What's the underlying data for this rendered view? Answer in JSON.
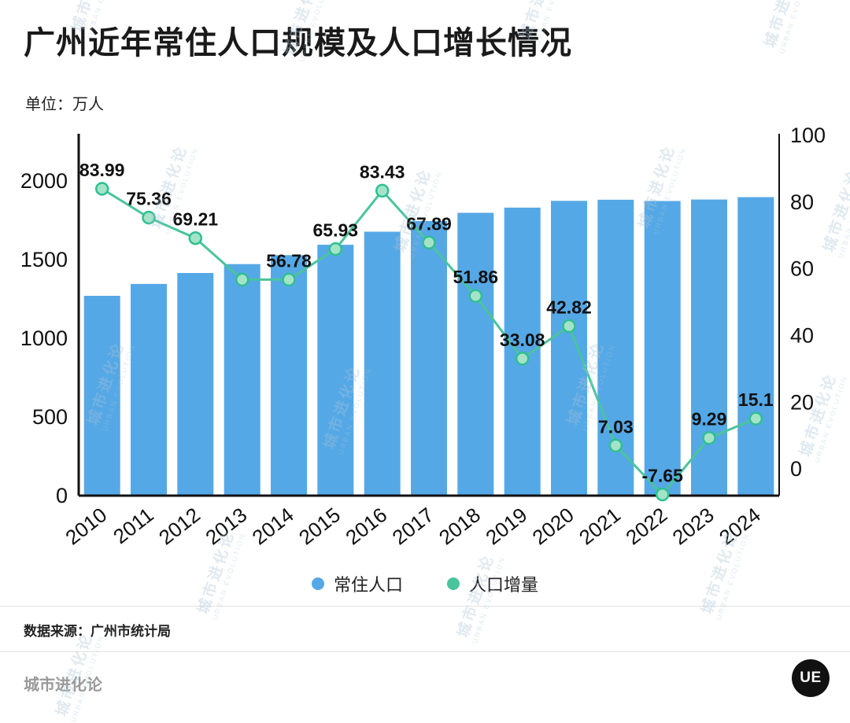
{
  "header": {
    "title": "广州近年常住人口规模及人口增长情况",
    "unit_label": "单位：万人"
  },
  "chart_data": {
    "type": "bar+line",
    "title": "广州近年常住人口规模及人口增长情况",
    "unit": "万人",
    "categories": [
      "2010",
      "2011",
      "2012",
      "2013",
      "2014",
      "2015",
      "2016",
      "2017",
      "2018",
      "2019",
      "2020",
      "2021",
      "2022",
      "2023",
      "2024"
    ],
    "series": [
      {
        "name": "常住人口",
        "type": "bar",
        "axis": "left",
        "color": "#55a8e6",
        "values": [
          1270.2,
          1345.6,
          1414.8,
          1471.5,
          1528.3,
          1594.3,
          1677.7,
          1745.6,
          1797.4,
          1830.5,
          1873.3,
          1880.4,
          1872.7,
          1882.0,
          1897.1
        ]
      },
      {
        "name": "人口增量",
        "type": "line",
        "axis": "right",
        "color": "#4ac49c",
        "values": [
          83.99,
          75.36,
          69.21,
          56.78,
          56.78,
          65.93,
          83.43,
          67.89,
          51.86,
          33.08,
          42.82,
          7.03,
          -7.65,
          9.29,
          15.1
        ],
        "labels": [
          "83.99",
          "75.36",
          "69.21",
          "",
          "56.78",
          "65.93",
          "83.43",
          "67.89",
          "51.86",
          "33.08",
          "42.82",
          "7.03",
          "-7.65",
          "9.29",
          "15.1"
        ]
      }
    ],
    "left_axis": {
      "min": 0,
      "max": 2300,
      "ticks": [
        0,
        500,
        1000,
        1500,
        2000
      ]
    },
    "right_axis": {
      "min": -8,
      "max": 100.5,
      "ticks": [
        0,
        20,
        40,
        60,
        80,
        100
      ]
    },
    "grid": false,
    "legend_position": "bottom",
    "xlabel": "",
    "ylabel_left": "万人",
    "ylabel_right": ""
  },
  "legend": [
    {
      "label": "常住人口",
      "color": "#55a8e6"
    },
    {
      "label": "人口增量",
      "color": "#4ac49c"
    }
  ],
  "footer": {
    "source": "数据来源：广州市统计局",
    "brand": "城市进化论",
    "logo": "UE"
  },
  "watermark": {
    "text_cn": "城市进化论",
    "text_en": "URBAN EVOLUTION"
  }
}
